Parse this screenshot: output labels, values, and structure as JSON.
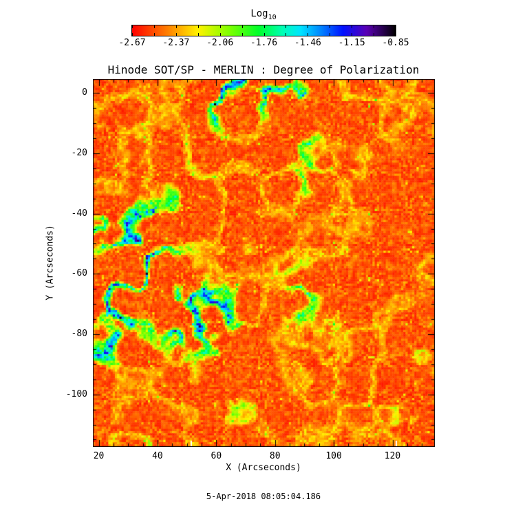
{
  "colorbar": {
    "title": "Log",
    "title_sub": "10",
    "tick_labels": [
      "-2.67",
      "-2.37",
      "-2.06",
      "-1.76",
      "-1.46",
      "-1.15",
      "-0.85"
    ]
  },
  "chart_data": {
    "type": "heatmap",
    "title": "Hinode SOT/SP - MERLIN : Degree of Polarization",
    "xlabel": "X (Arcseconds)",
    "ylabel": "Y (Arcseconds)",
    "x_range": [
      18,
      134.4
    ],
    "y_range": [
      -117.4,
      4.6
    ],
    "x_ticks": [
      20,
      40,
      60,
      80,
      100,
      120
    ],
    "x_tick_labels": [
      "20",
      "40",
      "60",
      "80",
      "100",
      "120"
    ],
    "y_ticks": [
      0,
      -20,
      -40,
      -60,
      -80,
      -100
    ],
    "y_tick_labels": [
      "0",
      "-20",
      "-40",
      "-60",
      "-80",
      "-100"
    ],
    "minor_tick_step_arcsec": 5,
    "colorbar": {
      "scale_label": "Log10",
      "range": [
        -2.67,
        -0.85
      ],
      "ticks": [
        -2.67,
        -2.37,
        -2.06,
        -1.76,
        -1.46,
        -1.15,
        -0.85
      ],
      "tick_count_with_minors": 13
    },
    "colormap_stops": [
      [
        0.0,
        "#ff0000"
      ],
      [
        0.13,
        "#ff7b00"
      ],
      [
        0.25,
        "#fff200"
      ],
      [
        0.37,
        "#7dff00"
      ],
      [
        0.48,
        "#00ff2a"
      ],
      [
        0.57,
        "#00ffb4"
      ],
      [
        0.64,
        "#00e4ff"
      ],
      [
        0.72,
        "#0080ff"
      ],
      [
        0.8,
        "#0011ff"
      ],
      [
        0.89,
        "#5a00b4"
      ],
      [
        1.0,
        "#000000"
      ]
    ],
    "pattern_summary": "Quiet-Sun map dominated by low polarization (red, ~10^-2.7) granulation speckled with orange/yellow; magnetic network lanes appear as green filamentary webs with cyan-to-blue cores (up to ~10^-1), strongest in the upper-left and center-right regions; two small white data-gap notches at the bottom edge near x=51 and x=121 arcsec."
  },
  "footer": {
    "timestamp": "5-Apr-2018 08:05:04.186"
  }
}
